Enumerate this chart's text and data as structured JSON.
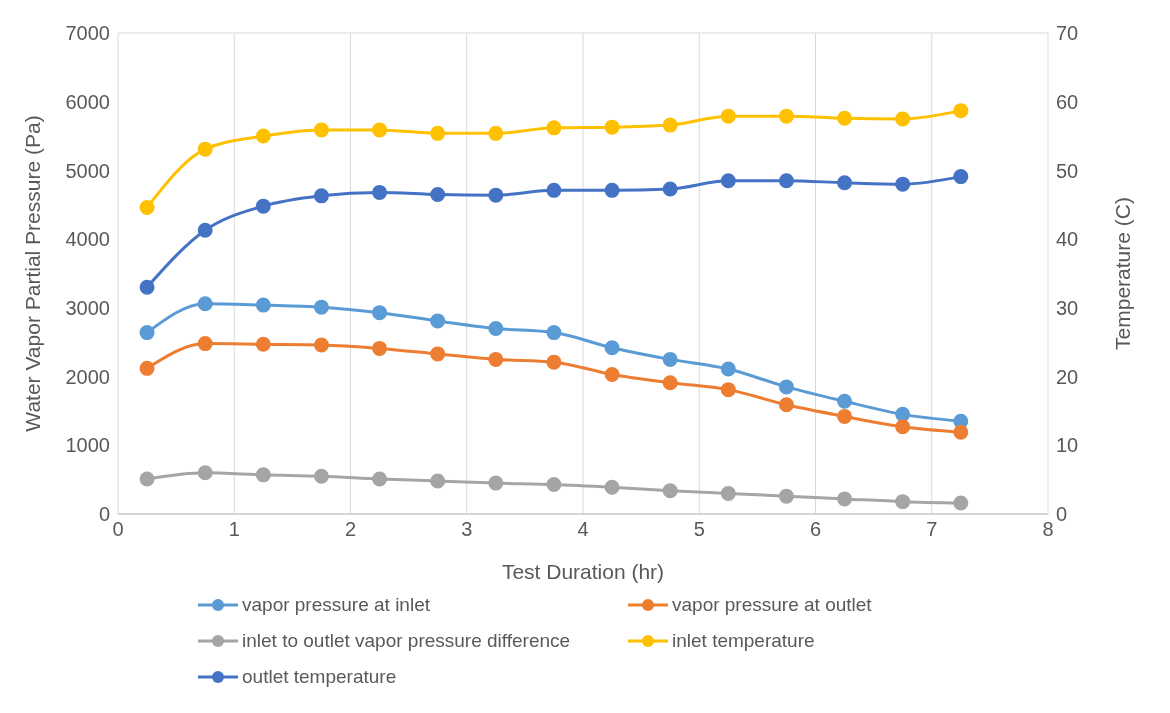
{
  "chart_data": {
    "type": "line",
    "xlabel": "Test Duration (hr)",
    "ylabel": "Water Vapor Partial Pressure (Pa)",
    "y2label": "Temperature (C)",
    "x": [
      0.25,
      0.75,
      1.25,
      1.75,
      2.25,
      2.75,
      3.25,
      3.75,
      4.25,
      4.75,
      5.25,
      5.75,
      6.25,
      6.75,
      7.25
    ],
    "xlim": [
      0,
      8
    ],
    "xticks": [
      0,
      1,
      2,
      3,
      4,
      5,
      6,
      7,
      8
    ],
    "ylim": [
      0,
      7000
    ],
    "yticks": [
      0,
      1000,
      2000,
      3000,
      4000,
      5000,
      6000,
      7000
    ],
    "y2lim": [
      0,
      70
    ],
    "y2ticks": [
      0,
      10,
      20,
      30,
      40,
      50,
      60,
      70
    ],
    "grid": true,
    "legend": "bottom",
    "marker": "circle",
    "line_style": "solid",
    "series": [
      {
        "name": "vapor pressure at inlet",
        "color": "#5b9bd5",
        "values": [
          2640,
          3060,
          3040,
          3010,
          2930,
          2810,
          2700,
          2640,
          2420,
          2250,
          2110,
          1850,
          1640,
          1450,
          1350
        ]
      },
      {
        "name": "vapor pressure at outlet",
        "color": "#ed7d31",
        "values": [
          2120,
          2480,
          2470,
          2460,
          2410,
          2330,
          2250,
          2210,
          2030,
          1910,
          1810,
          1590,
          1420,
          1270,
          1190
        ]
      },
      {
        "name": "inlet to outlet vapor pressure difference",
        "color": "#a5a5a5",
        "values": [
          510,
          600,
          570,
          550,
          510,
          480,
          450,
          430,
          390,
          340,
          300,
          260,
          220,
          180,
          160
        ]
      },
      {
        "name": "inlet temperature",
        "color": "#ffc000",
        "axis": "y2",
        "values": [
          44.6,
          53.1,
          55,
          55.9,
          55.9,
          55.4,
          55.4,
          56.2,
          56.3,
          56.6,
          57.9,
          57.9,
          57.6,
          57.5,
          58.7
        ]
      },
      {
        "name": "outlet temperature",
        "color": "#4472c4",
        "axis": "y2",
        "values": [
          33,
          41.3,
          44.8,
          46.3,
          46.8,
          46.5,
          46.4,
          47.1,
          47.1,
          47.3,
          48.5,
          48.5,
          48.2,
          48,
          49.1
        ]
      }
    ]
  }
}
